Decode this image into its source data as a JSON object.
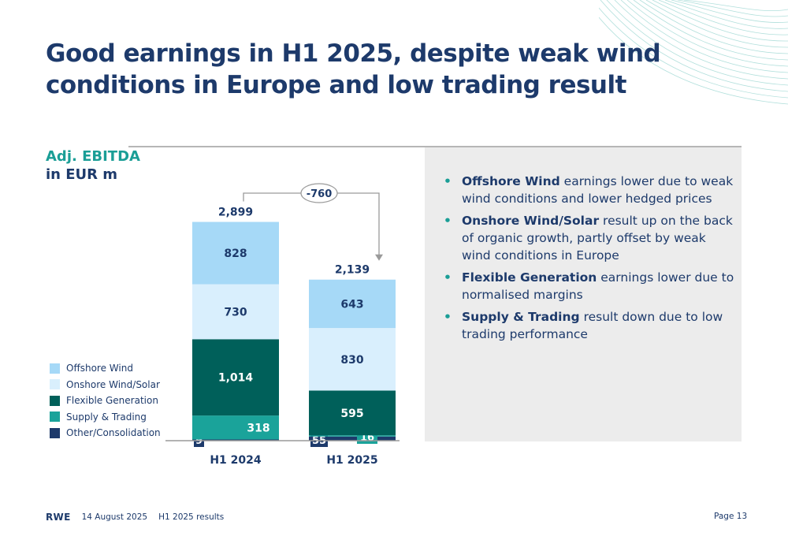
{
  "header": {
    "title": "Good earnings in H1 2025, despite weak wind conditions in Europe and low trading result",
    "subtitle_line1": "Adj. EBITDA",
    "subtitle_line2": "in EUR m"
  },
  "colors": {
    "offshore": "#a6d9f7",
    "onshore": "#d9effd",
    "flexible": "#00605a",
    "supply": "#1aa39a",
    "other": "#1d3a6b",
    "accent": "#1a9e96",
    "navy": "#1d3a6b"
  },
  "chart_data": {
    "type": "bar",
    "stacked": true,
    "title": "Adj. EBITDA",
    "ylabel": "in EUR m",
    "categories": [
      "H1 2024",
      "H1 2025"
    ],
    "series": [
      {
        "name": "Other/Consolidation",
        "values": [
          9,
          55
        ],
        "labels": [
          "9",
          "55"
        ]
      },
      {
        "name": "Supply & Trading",
        "values": [
          318,
          16
        ],
        "labels": [
          "318",
          "16"
        ]
      },
      {
        "name": "Flexible Generation",
        "values": [
          1014,
          595
        ],
        "labels": [
          "1,014",
          "595"
        ]
      },
      {
        "name": "Onshore Wind/Solar",
        "values": [
          730,
          830
        ],
        "labels": [
          "730",
          "830"
        ]
      },
      {
        "name": "Offshore Wind",
        "values": [
          828,
          643
        ],
        "labels": [
          "828",
          "643"
        ]
      }
    ],
    "totals": [
      2899,
      2139
    ],
    "total_labels": [
      "2,899",
      "2,139"
    ],
    "change_label": "-760",
    "legend_position": "left",
    "grid": false
  },
  "legend": [
    {
      "label": "Offshore Wind",
      "color": "#a6d9f7"
    },
    {
      "label": "Onshore Wind/Solar",
      "color": "#d9effd"
    },
    {
      "label": "Flexible Generation",
      "color": "#00605a"
    },
    {
      "label": "Supply & Trading",
      "color": "#1aa39a"
    },
    {
      "label": "Other/Consolidation",
      "color": "#1d3a6b"
    }
  ],
  "bullets": [
    {
      "bold": "Offshore Wind",
      "text": " earnings lower due to weak wind conditions and lower hedged prices"
    },
    {
      "bold": "Onshore Wind/Solar",
      "text": " result up on the back of organic growth, partly offset by weak wind conditions in Europe"
    },
    {
      "bold": "Flexible Generation",
      "text": " earnings lower due to normalised margins"
    },
    {
      "bold": "Supply & Trading",
      "text": " result down due to low trading performance"
    }
  ],
  "footer": {
    "logo": "RWE",
    "date": "14 August 2025",
    "doc": "H1 2025 results",
    "page": "Page 13"
  }
}
